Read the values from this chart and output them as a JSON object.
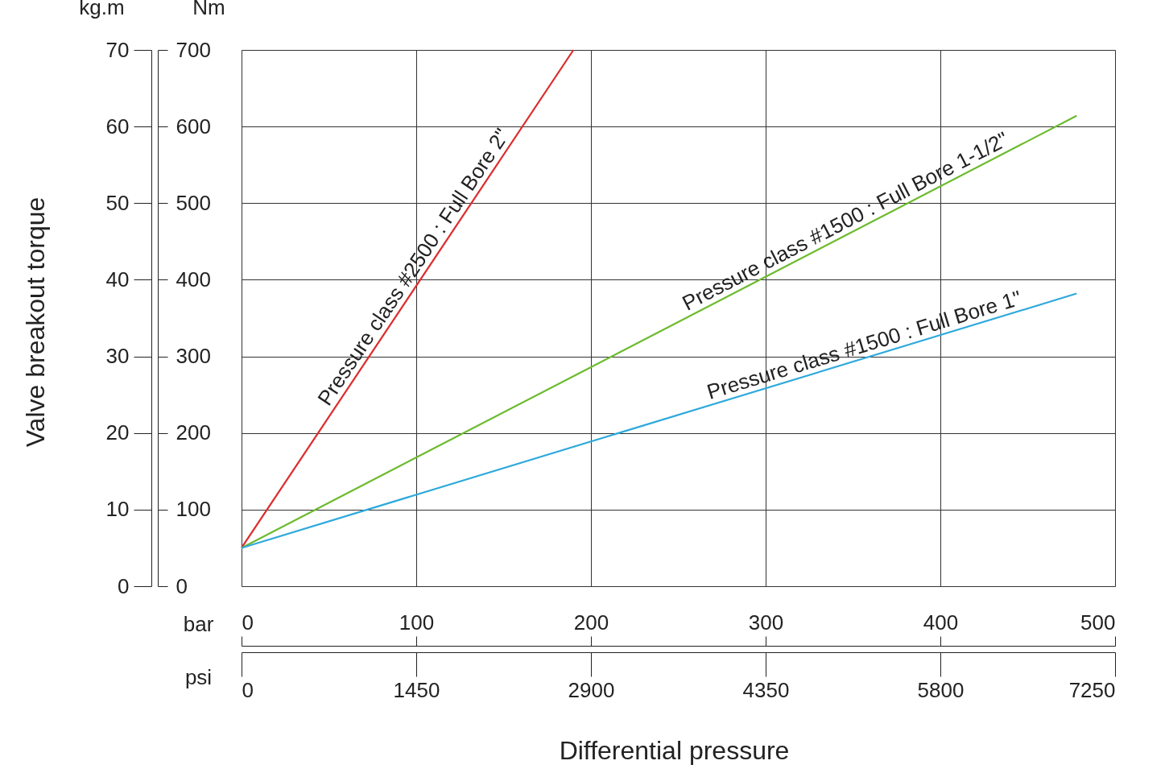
{
  "chart_data": {
    "type": "line",
    "xlabel": "bar",
    "ylabel": "Nm",
    "y2label": "kg.m",
    "x2label": "psi",
    "annotations": [
      "Valve breakout  torque",
      "Differential pressure"
    ],
    "xlim": [
      0,
      500
    ],
    "xticks": [
      0,
      100,
      200,
      300,
      400,
      500
    ],
    "x2lim": [
      0,
      7250
    ],
    "x2ticks": [
      0,
      1450,
      2900,
      4350,
      5800,
      7250
    ],
    "ylim": [
      0,
      700
    ],
    "yticks": [
      0,
      100,
      200,
      300,
      400,
      500,
      600,
      700
    ],
    "y2lim": [
      0,
      70
    ],
    "y2ticks": [
      0,
      10,
      20,
      30,
      40,
      50,
      60,
      70
    ],
    "grid": true,
    "legend": false,
    "marker": "none",
    "line_style": "solid",
    "series": [
      {
        "name": "Pressure class #2500 : Full Bore 2\"",
        "color": "#dd2a2a",
        "x": [
          0,
          190
        ],
        "values": [
          50,
          700
        ]
      },
      {
        "name": "Pressure class #1500 : Full Bore 1-1/2\"",
        "color": "#6cbb2e",
        "x": [
          0,
          478
        ],
        "values": [
          50,
          614
        ]
      },
      {
        "name": "Pressure class #1500 : Full Bore 1\"",
        "color": "#2ea9dc",
        "x": [
          0,
          478
        ],
        "values": [
          50,
          382
        ]
      }
    ]
  }
}
